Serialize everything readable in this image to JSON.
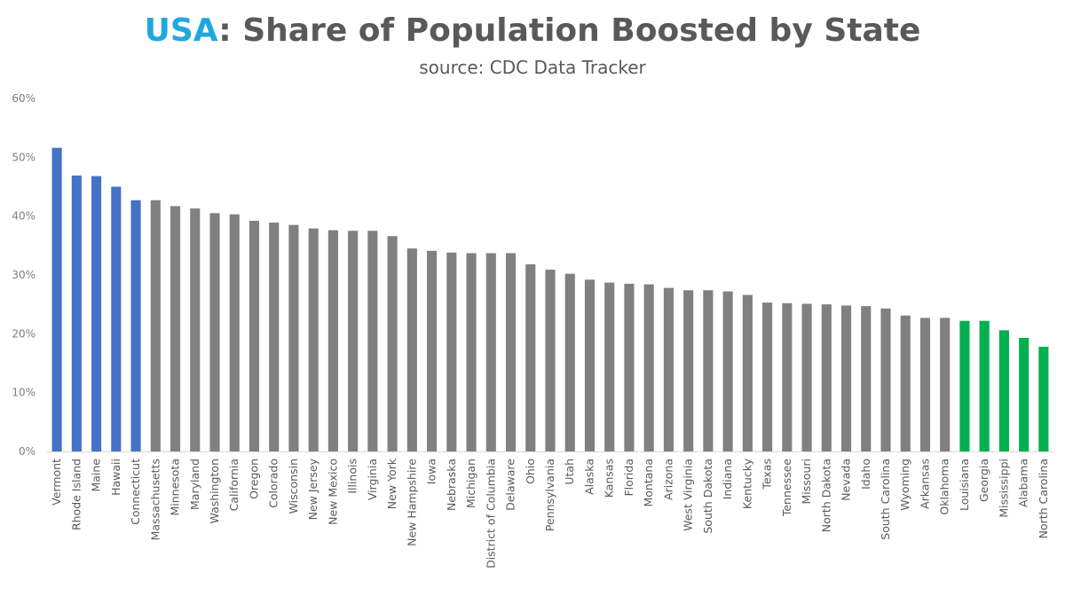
{
  "header": {
    "title_accent": "USA",
    "title_rest": ": Share of Population Boosted by State",
    "subtitle": "source: CDC Data Tracker"
  },
  "colors": {
    "top": "#4472c4",
    "middle": "#808080",
    "bottom": "#00b050",
    "accent": "#1fa8e0",
    "text": "#595959"
  },
  "chart_data": {
    "type": "bar",
    "title": "USA: Share of Population Boosted by State",
    "subtitle": "source: CDC Data Tracker",
    "xlabel": "",
    "ylabel": "",
    "ylim": [
      0,
      60
    ],
    "yticks": [
      0,
      10,
      20,
      30,
      40,
      50,
      60
    ],
    "ytick_labels": [
      "0%",
      "10%",
      "20%",
      "30%",
      "40%",
      "50%",
      "60%"
    ],
    "grid": false,
    "categories": [
      "Vermont",
      "Rhode Island",
      "Maine",
      "Hawaii",
      "Connecticut",
      "Massachusetts",
      "Minnesota",
      "Maryland",
      "Washington",
      "California",
      "Oregon",
      "Colorado",
      "Wisconsin",
      "New Jersey",
      "New Mexico",
      "Illinois",
      "Virginia",
      "New York",
      "New Hampshire",
      "Iowa",
      "Nebraska",
      "Michigan",
      "District of Columbia",
      "Delaware",
      "Ohio",
      "Pennsylvania",
      "Utah",
      "Alaska",
      "Kansas",
      "Florida",
      "Montana",
      "Arizona",
      "West Virginia",
      "South Dakota",
      "Indiana",
      "Kentucky",
      "Texas",
      "Tennessee",
      "Missouri",
      "North Dakota",
      "Nevada",
      "Idaho",
      "South Carolina",
      "Wyoming",
      "Arkansas",
      "Oklahoma",
      "Louisiana",
      "Georgia",
      "Mississippi",
      "Alabama",
      "North Carolina"
    ],
    "values": [
      51.6,
      46.9,
      46.8,
      45.0,
      42.7,
      42.7,
      41.7,
      41.3,
      40.5,
      40.3,
      39.2,
      38.9,
      38.5,
      37.9,
      37.6,
      37.5,
      37.5,
      36.6,
      34.5,
      34.1,
      33.8,
      33.7,
      33.7,
      33.7,
      31.8,
      30.9,
      30.2,
      29.2,
      28.7,
      28.5,
      28.4,
      27.8,
      27.4,
      27.4,
      27.2,
      26.6,
      25.3,
      25.2,
      25.1,
      25.0,
      24.8,
      24.7,
      24.3,
      23.1,
      22.7,
      22.7,
      22.2,
      22.2,
      20.6,
      19.3,
      17.8
    ],
    "groups": [
      "top",
      "top",
      "top",
      "top",
      "top",
      "middle",
      "middle",
      "middle",
      "middle",
      "middle",
      "middle",
      "middle",
      "middle",
      "middle",
      "middle",
      "middle",
      "middle",
      "middle",
      "middle",
      "middle",
      "middle",
      "middle",
      "middle",
      "middle",
      "middle",
      "middle",
      "middle",
      "middle",
      "middle",
      "middle",
      "middle",
      "middle",
      "middle",
      "middle",
      "middle",
      "middle",
      "middle",
      "middle",
      "middle",
      "middle",
      "middle",
      "middle",
      "middle",
      "middle",
      "middle",
      "middle",
      "bottom",
      "bottom",
      "bottom",
      "bottom",
      "bottom"
    ]
  }
}
